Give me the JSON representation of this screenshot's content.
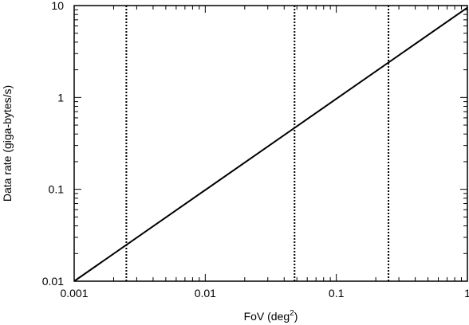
{
  "chart_data": {
    "type": "line",
    "title": "",
    "xlabel": "FoV (deg",
    "xlabel_superscript": "2",
    "xlabel_suffix": ")",
    "ylabel": "Data rate (giga-bytes/s)",
    "xscale": "log",
    "yscale": "log",
    "xlim": [
      0.001,
      1
    ],
    "ylim": [
      0.01,
      10
    ],
    "grid": false,
    "legend": "none",
    "x_ticks": [
      0.001,
      0.01,
      0.1,
      1
    ],
    "x_tick_labels": [
      "0.001",
      "0.01",
      "0.1",
      "1"
    ],
    "y_ticks": [
      0.01,
      0.1,
      1,
      10
    ],
    "y_tick_labels": [
      "0.01",
      "0.1",
      "1",
      "10"
    ],
    "series": [
      {
        "style": "solid",
        "color": "#000000",
        "x": [
          0.001,
          1
        ],
        "y": [
          0.01,
          9.5
        ]
      }
    ],
    "vertical_lines": [
      {
        "x": 0.0025,
        "style": "dotted",
        "color": "#000000"
      },
      {
        "x": 0.048,
        "style": "dotted",
        "color": "#000000"
      },
      {
        "x": 0.25,
        "style": "dotted",
        "color": "#000000"
      }
    ]
  }
}
